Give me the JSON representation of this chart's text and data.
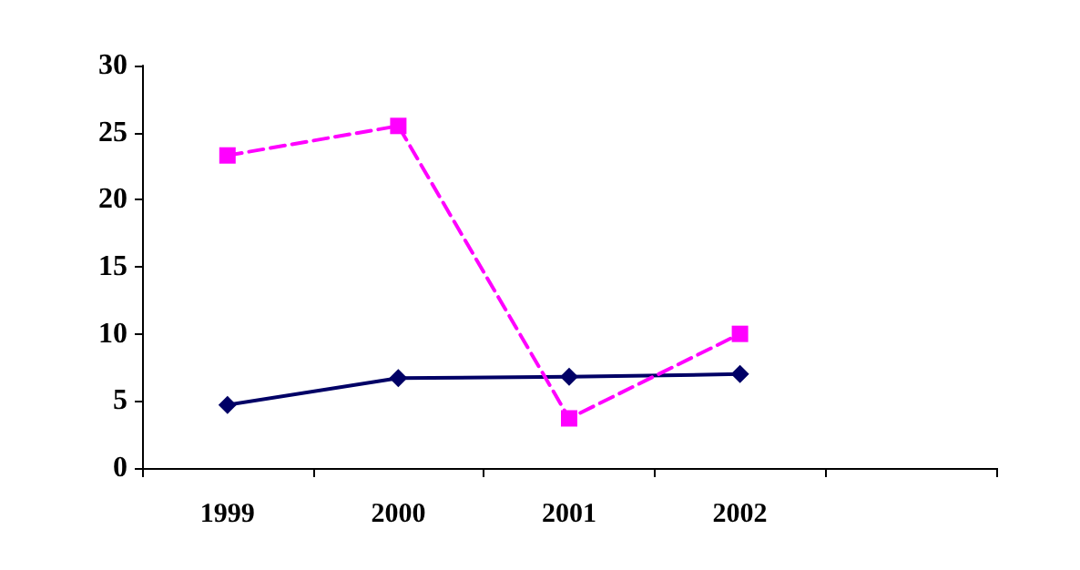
{
  "chart_data": {
    "type": "line",
    "categories": [
      "1999",
      "2000",
      "2001",
      "2002",
      null
    ],
    "series": [
      {
        "color": "#000066",
        "values": [
          4.7,
          6.7,
          6.8,
          7.0,
          null
        ],
        "marker": "diamond",
        "line_style": "solid"
      },
      {
        "color": "#ff00ff",
        "values": [
          23.3,
          25.5,
          3.7,
          10.0,
          null
        ],
        "marker": "square",
        "line_style": "dashed"
      }
    ],
    "ylim": [
      0,
      30
    ],
    "yticks": [
      0,
      5,
      10,
      15,
      20,
      25,
      30
    ],
    "grid": false
  }
}
